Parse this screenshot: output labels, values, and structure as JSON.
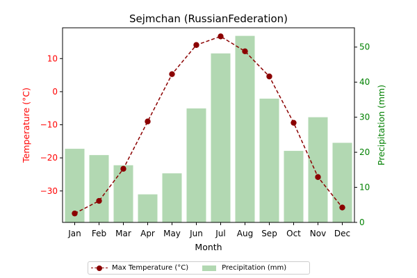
{
  "chart_data": {
    "type": "bar+line",
    "title": "Sejmchan (RussianFederation)",
    "xlabel": "Month",
    "categories": [
      "Jan",
      "Feb",
      "Mar",
      "Apr",
      "May",
      "Jun",
      "Jul",
      "Aug",
      "Sep",
      "Oct",
      "Nov",
      "Dec"
    ],
    "left_axis": {
      "label": "Temperature (°C)",
      "color": "#ff0000",
      "ylim": [
        -39.5,
        19.3
      ],
      "ticks": [
        -30,
        -20,
        -10,
        0,
        10
      ]
    },
    "right_axis": {
      "label": "Precipitation (mm)",
      "color": "#008000",
      "ylim": [
        0,
        55.5
      ],
      "ticks": [
        0,
        10,
        20,
        30,
        40,
        50
      ]
    },
    "series": [
      {
        "name": "Max Temperature (°C)",
        "kind": "line",
        "axis": "left",
        "color": "#8b0000",
        "values": [
          -36.8,
          -33.0,
          -23.3,
          -9.0,
          5.3,
          14.1,
          16.7,
          12.2,
          4.6,
          -9.4,
          -25.8,
          -35.0
        ]
      },
      {
        "name": "Precipitation (mm)",
        "kind": "bar",
        "axis": "right",
        "color": "#b2d8b2",
        "values": [
          21.0,
          19.2,
          16.3,
          8.0,
          14.0,
          32.5,
          48.2,
          53.2,
          35.3,
          20.4,
          30.0,
          22.7
        ]
      }
    ],
    "legend": {
      "placement": "bottom-center",
      "entries": [
        "Max Temperature (°C)",
        "Precipitation (mm)"
      ]
    },
    "grid": false
  }
}
